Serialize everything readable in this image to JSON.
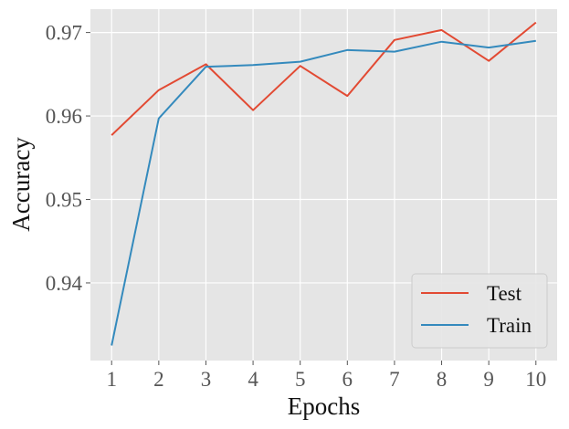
{
  "chart_data": {
    "type": "line",
    "title": "",
    "xlabel": "Epochs",
    "ylabel": "Accuracy",
    "x": [
      1,
      2,
      3,
      4,
      5,
      6,
      7,
      8,
      9,
      10
    ],
    "xticks": [
      "1",
      "2",
      "3",
      "4",
      "5",
      "6",
      "7",
      "8",
      "9",
      "10"
    ],
    "yticks": [
      0.94,
      0.95,
      0.96,
      0.97
    ],
    "ytick_labels": [
      "0.94",
      "0.95",
      "0.96",
      "0.97"
    ],
    "xlim": [
      0.55,
      10.45
    ],
    "ylim": [
      0.9307,
      0.9728
    ],
    "grid": true,
    "legend_position": "lower-right",
    "series": [
      {
        "name": "Test",
        "color": "#E24A33",
        "values": [
          0.9577,
          0.9631,
          0.9662,
          0.9607,
          0.966,
          0.9624,
          0.9691,
          0.9703,
          0.9666,
          0.9712
        ]
      },
      {
        "name": "Train",
        "color": "#348ABD",
        "values": [
          0.9325,
          0.9597,
          0.9659,
          0.9661,
          0.9665,
          0.9679,
          0.9677,
          0.9689,
          0.9682,
          0.969
        ]
      }
    ]
  }
}
